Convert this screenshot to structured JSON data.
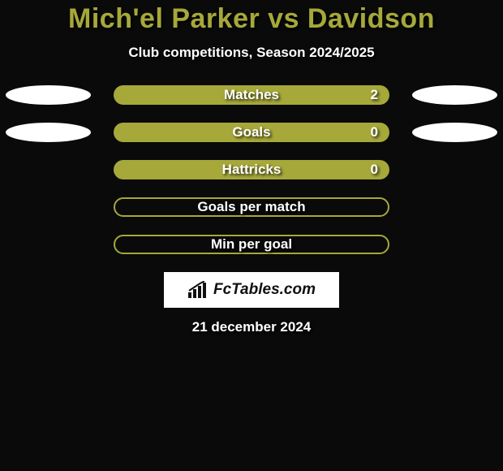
{
  "title": "Mich'el Parker vs Davidson",
  "subtitle": "Club competitions, Season 2024/2025",
  "rows": [
    {
      "label": "Matches",
      "value": "2",
      "filled": true,
      "left_ellipse": true,
      "right_ellipse": true
    },
    {
      "label": "Goals",
      "value": "0",
      "filled": true,
      "left_ellipse": true,
      "right_ellipse": true
    },
    {
      "label": "Hattricks",
      "value": "0",
      "filled": true,
      "left_ellipse": false,
      "right_ellipse": false
    },
    {
      "label": "Goals per match",
      "value": "",
      "filled": false,
      "left_ellipse": false,
      "right_ellipse": false
    },
    {
      "label": "Min per goal",
      "value": "",
      "filled": false,
      "left_ellipse": false,
      "right_ellipse": false
    }
  ],
  "logo_text": "FcTables.com",
  "date": "21 december 2024",
  "colors": {
    "accent": "#a6a83a",
    "background": "#0a0a0a",
    "ellipse": "#ffffff",
    "text": "#ffffff"
  }
}
